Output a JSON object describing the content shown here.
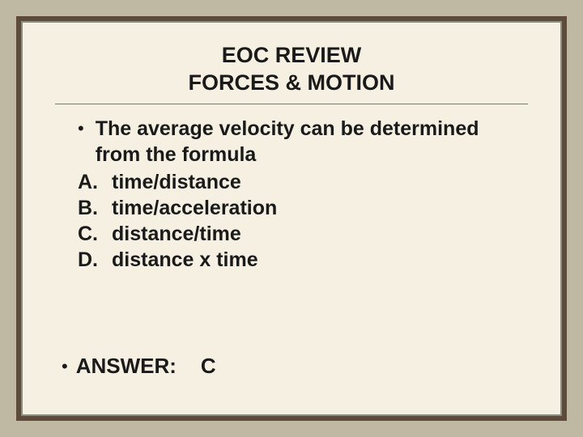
{
  "title": {
    "line1": "EOC REVIEW",
    "line2": "FORCES & MOTION"
  },
  "question": {
    "bullet": "•",
    "text": "The average velocity can be determined from the formula"
  },
  "choices": [
    {
      "label": "A.",
      "text": "time/distance"
    },
    {
      "label": "B.",
      "text": "time/acceleration"
    },
    {
      "label": "C.",
      "text": "distance/time"
    },
    {
      "label": "D.",
      "text": "distance x time"
    }
  ],
  "answer": {
    "bullet": "•",
    "label": "ANSWER:",
    "value": "C"
  },
  "colors": {
    "page_bg": "#bfb8a3",
    "frame_outer": "#5d4a3a",
    "frame_inner": "#f5f0e1",
    "border": "#8a9080",
    "text": "#1a1a1a",
    "divider": "#7a7a6a"
  },
  "typography": {
    "title_fontsize": 27,
    "body_fontsize": 25,
    "answer_fontsize": 26,
    "font_weight": "bold",
    "font_family": "Verdana"
  }
}
